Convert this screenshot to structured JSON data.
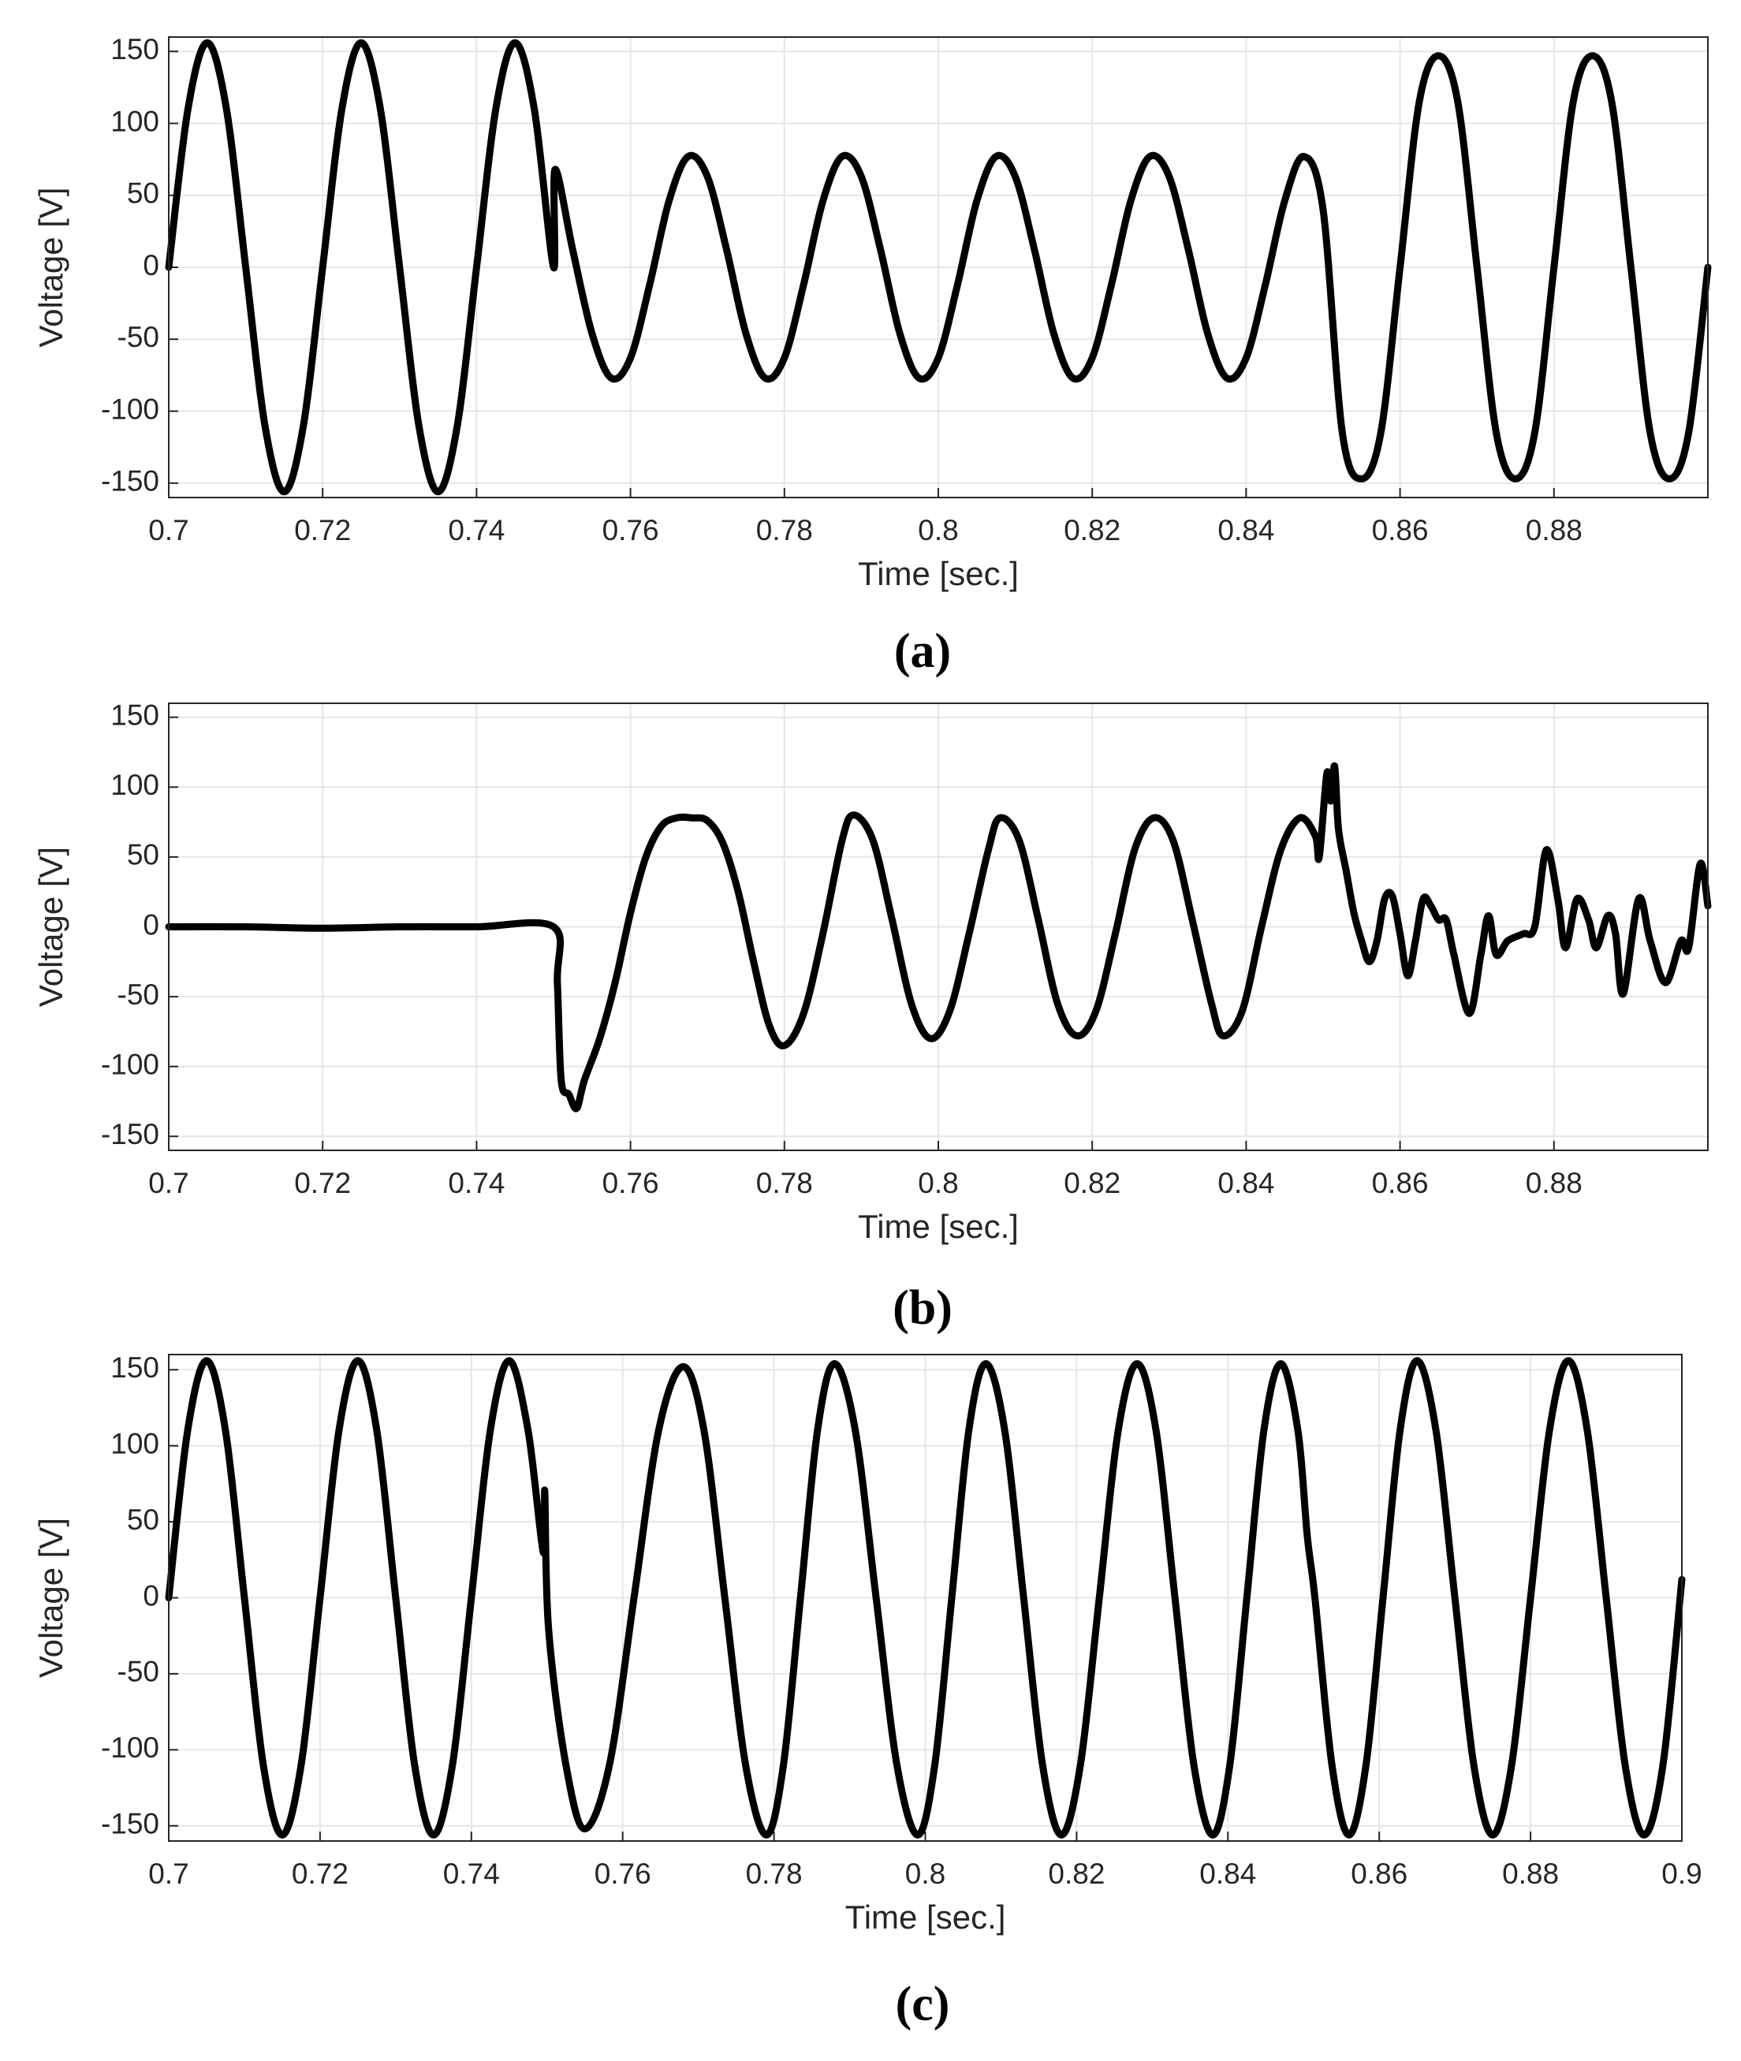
{
  "chart_data": [
    {
      "type": "line",
      "caption": "(a)",
      "x_label": "Time [sec.]",
      "y_label": "Voltage [V]",
      "color": "#000000",
      "grid": true,
      "xlim": [
        0.7,
        0.9
      ],
      "xticks": [
        0.7,
        0.72,
        0.74,
        0.76,
        0.78,
        0.8,
        0.82,
        0.84,
        0.86,
        0.88
      ],
      "ylim": [
        -160,
        160
      ],
      "yticks": [
        -150,
        -100,
        -50,
        0,
        50,
        100,
        150
      ],
      "x": [
        0.7,
        0.7025,
        0.705,
        0.7075,
        0.71,
        0.7125,
        0.715,
        0.7175,
        0.72,
        0.7225,
        0.725,
        0.7275,
        0.73,
        0.7325,
        0.735,
        0.7375,
        0.74,
        0.7425,
        0.745,
        0.7475,
        0.75,
        0.7502,
        0.7525,
        0.755,
        0.7575,
        0.76,
        0.7625,
        0.765,
        0.7675,
        0.77,
        0.7725,
        0.775,
        0.7775,
        0.78,
        0.7825,
        0.785,
        0.7875,
        0.79,
        0.7925,
        0.795,
        0.7975,
        0.8,
        0.8025,
        0.805,
        0.8075,
        0.81,
        0.8125,
        0.815,
        0.8175,
        0.82,
        0.8225,
        0.825,
        0.8275,
        0.83,
        0.8325,
        0.835,
        0.8375,
        0.84,
        0.8425,
        0.845,
        0.8475,
        0.85,
        0.8525,
        0.855,
        0.8575,
        0.86,
        0.8625,
        0.865,
        0.8675,
        0.87,
        0.8725,
        0.875,
        0.8775,
        0.88,
        0.8825,
        0.885,
        0.8875,
        0.89,
        0.8925,
        0.895,
        0.8975,
        0.9
      ],
      "values": [
        0,
        110,
        156,
        110,
        0,
        -110,
        -156,
        -110,
        0,
        110,
        156,
        110,
        0,
        -110,
        -156,
        -110,
        0,
        110,
        156,
        110,
        0,
        68,
        12,
        -46,
        -77,
        -63,
        -12,
        46,
        77,
        63,
        12,
        -46,
        -77,
        -63,
        -12,
        46,
        77,
        63,
        12,
        -46,
        -77,
        -63,
        -12,
        46,
        77,
        63,
        12,
        -46,
        -77,
        -63,
        -12,
        46,
        77,
        63,
        12,
        -46,
        -77,
        -63,
        -12,
        46,
        77,
        40,
        -115,
        -147,
        -115,
        0,
        115,
        147,
        115,
        0,
        -115,
        -147,
        -115,
        0,
        115,
        147,
        115,
        0,
        -115,
        -147,
        -115,
        0
      ]
    },
    {
      "type": "line",
      "caption": "(b)",
      "x_label": "Time [sec.]",
      "y_label": "Voltage [V]",
      "color": "#000000",
      "grid": true,
      "xlim": [
        0.7,
        0.9
      ],
      "xticks": [
        0.7,
        0.72,
        0.74,
        0.76,
        0.78,
        0.8,
        0.82,
        0.84,
        0.86,
        0.88
      ],
      "ylim": [
        -160,
        160
      ],
      "yticks": [
        -150,
        -100,
        -50,
        0,
        50,
        100,
        150
      ],
      "x": [
        0.7,
        0.71,
        0.72,
        0.73,
        0.74,
        0.75,
        0.7505,
        0.751,
        0.752,
        0.753,
        0.754,
        0.756,
        0.758,
        0.76,
        0.762,
        0.764,
        0.766,
        0.768,
        0.77,
        0.772,
        0.774,
        0.776,
        0.778,
        0.78,
        0.7825,
        0.785,
        0.7875,
        0.789,
        0.7915,
        0.794,
        0.7965,
        0.799,
        0.8015,
        0.804,
        0.8065,
        0.808,
        0.8105,
        0.813,
        0.8155,
        0.818,
        0.8205,
        0.823,
        0.8255,
        0.828,
        0.8305,
        0.833,
        0.8355,
        0.837,
        0.8395,
        0.842,
        0.8445,
        0.847,
        0.849,
        0.8495,
        0.8505,
        0.851,
        0.8515,
        0.852,
        0.853,
        0.854,
        0.855,
        0.856,
        0.857,
        0.858,
        0.859,
        0.86,
        0.861,
        0.862,
        0.863,
        0.864,
        0.865,
        0.866,
        0.867,
        0.869,
        0.8705,
        0.8715,
        0.8725,
        0.874,
        0.876,
        0.8775,
        0.879,
        0.8805,
        0.8815,
        0.883,
        0.8845,
        0.8855,
        0.887,
        0.888,
        0.889,
        0.891,
        0.8925,
        0.8945,
        0.8965,
        0.8975,
        0.899,
        0.9
      ],
      "values": [
        0,
        0,
        -1,
        0,
        0,
        0,
        -40,
        -110,
        -120,
        -130,
        -110,
        -80,
        -40,
        10,
        50,
        72,
        78,
        78,
        76,
        60,
        25,
        -25,
        -70,
        -85,
        -62,
        -5,
        62,
        80,
        62,
        5,
        -55,
        -80,
        -60,
        -5,
        55,
        78,
        62,
        5,
        -55,
        -78,
        -60,
        -5,
        55,
        78,
        62,
        5,
        -55,
        -78,
        -60,
        0,
        55,
        78,
        65,
        50,
        110,
        90,
        115,
        70,
        40,
        10,
        -10,
        -25,
        -10,
        20,
        22,
        -5,
        -35,
        -10,
        20,
        15,
        5,
        5,
        -20,
        -62,
        -20,
        8,
        -20,
        -10,
        -5,
        0,
        55,
        20,
        -15,
        20,
        5,
        -15,
        8,
        -5,
        -48,
        20,
        -10,
        -40,
        -10,
        -15,
        45,
        15
      ]
    },
    {
      "type": "line",
      "caption": "(c)",
      "x_label": "Time [sec.]",
      "y_label": "Voltage [V]",
      "color": "#000000",
      "grid": true,
      "xlim": [
        0.7,
        0.9
      ],
      "xticks": [
        0.7,
        0.72,
        0.74,
        0.76,
        0.78,
        0.8,
        0.82,
        0.84,
        0.86,
        0.88,
        0.9
      ],
      "ylim": [
        -160,
        160
      ],
      "yticks": [
        -150,
        -100,
        -50,
        0,
        50,
        100,
        150
      ],
      "x": [
        0.7,
        0.7025,
        0.705,
        0.7075,
        0.71,
        0.7125,
        0.715,
        0.7175,
        0.72,
        0.7225,
        0.725,
        0.7275,
        0.73,
        0.7325,
        0.735,
        0.7375,
        0.74,
        0.7425,
        0.745,
        0.7475,
        0.7495,
        0.7497,
        0.7502,
        0.7525,
        0.755,
        0.75825,
        0.7615,
        0.76475,
        0.768,
        0.77075,
        0.7735,
        0.77625,
        0.779,
        0.78125,
        0.7835,
        0.78575,
        0.788,
        0.79075,
        0.7935,
        0.79625,
        0.799,
        0.80125,
        0.8035,
        0.80575,
        0.808,
        0.8105,
        0.813,
        0.8155,
        0.818,
        0.8205,
        0.823,
        0.8255,
        0.828,
        0.8305,
        0.833,
        0.8355,
        0.838,
        0.84025,
        0.8425,
        0.84475,
        0.847,
        0.84925,
        0.8505,
        0.8515,
        0.85375,
        0.856,
        0.85825,
        0.8605,
        0.86275,
        0.865,
        0.8675,
        0.87,
        0.8725,
        0.875,
        0.8775,
        0.88,
        0.8825,
        0.885,
        0.8875,
        0.89,
        0.8925,
        0.895,
        0.8975,
        0.9
      ],
      "values": [
        0,
        110,
        156,
        110,
        0,
        -110,
        -156,
        -110,
        0,
        110,
        156,
        110,
        0,
        -110,
        -156,
        -110,
        0,
        110,
        156,
        110,
        30,
        70,
        -20,
        -110,
        -152,
        -110,
        0,
        110,
        152,
        110,
        0,
        -110,
        -156,
        -110,
        0,
        110,
        154,
        110,
        0,
        -110,
        -156,
        -110,
        0,
        110,
        154,
        110,
        0,
        -110,
        -156,
        -110,
        0,
        110,
        154,
        110,
        0,
        -110,
        -156,
        -110,
        0,
        110,
        154,
        110,
        40,
        0,
        -110,
        -156,
        -110,
        0,
        110,
        156,
        110,
        0,
        -110,
        -156,
        -110,
        0,
        110,
        156,
        110,
        0,
        -110,
        -156,
        -110,
        12
      ]
    }
  ]
}
